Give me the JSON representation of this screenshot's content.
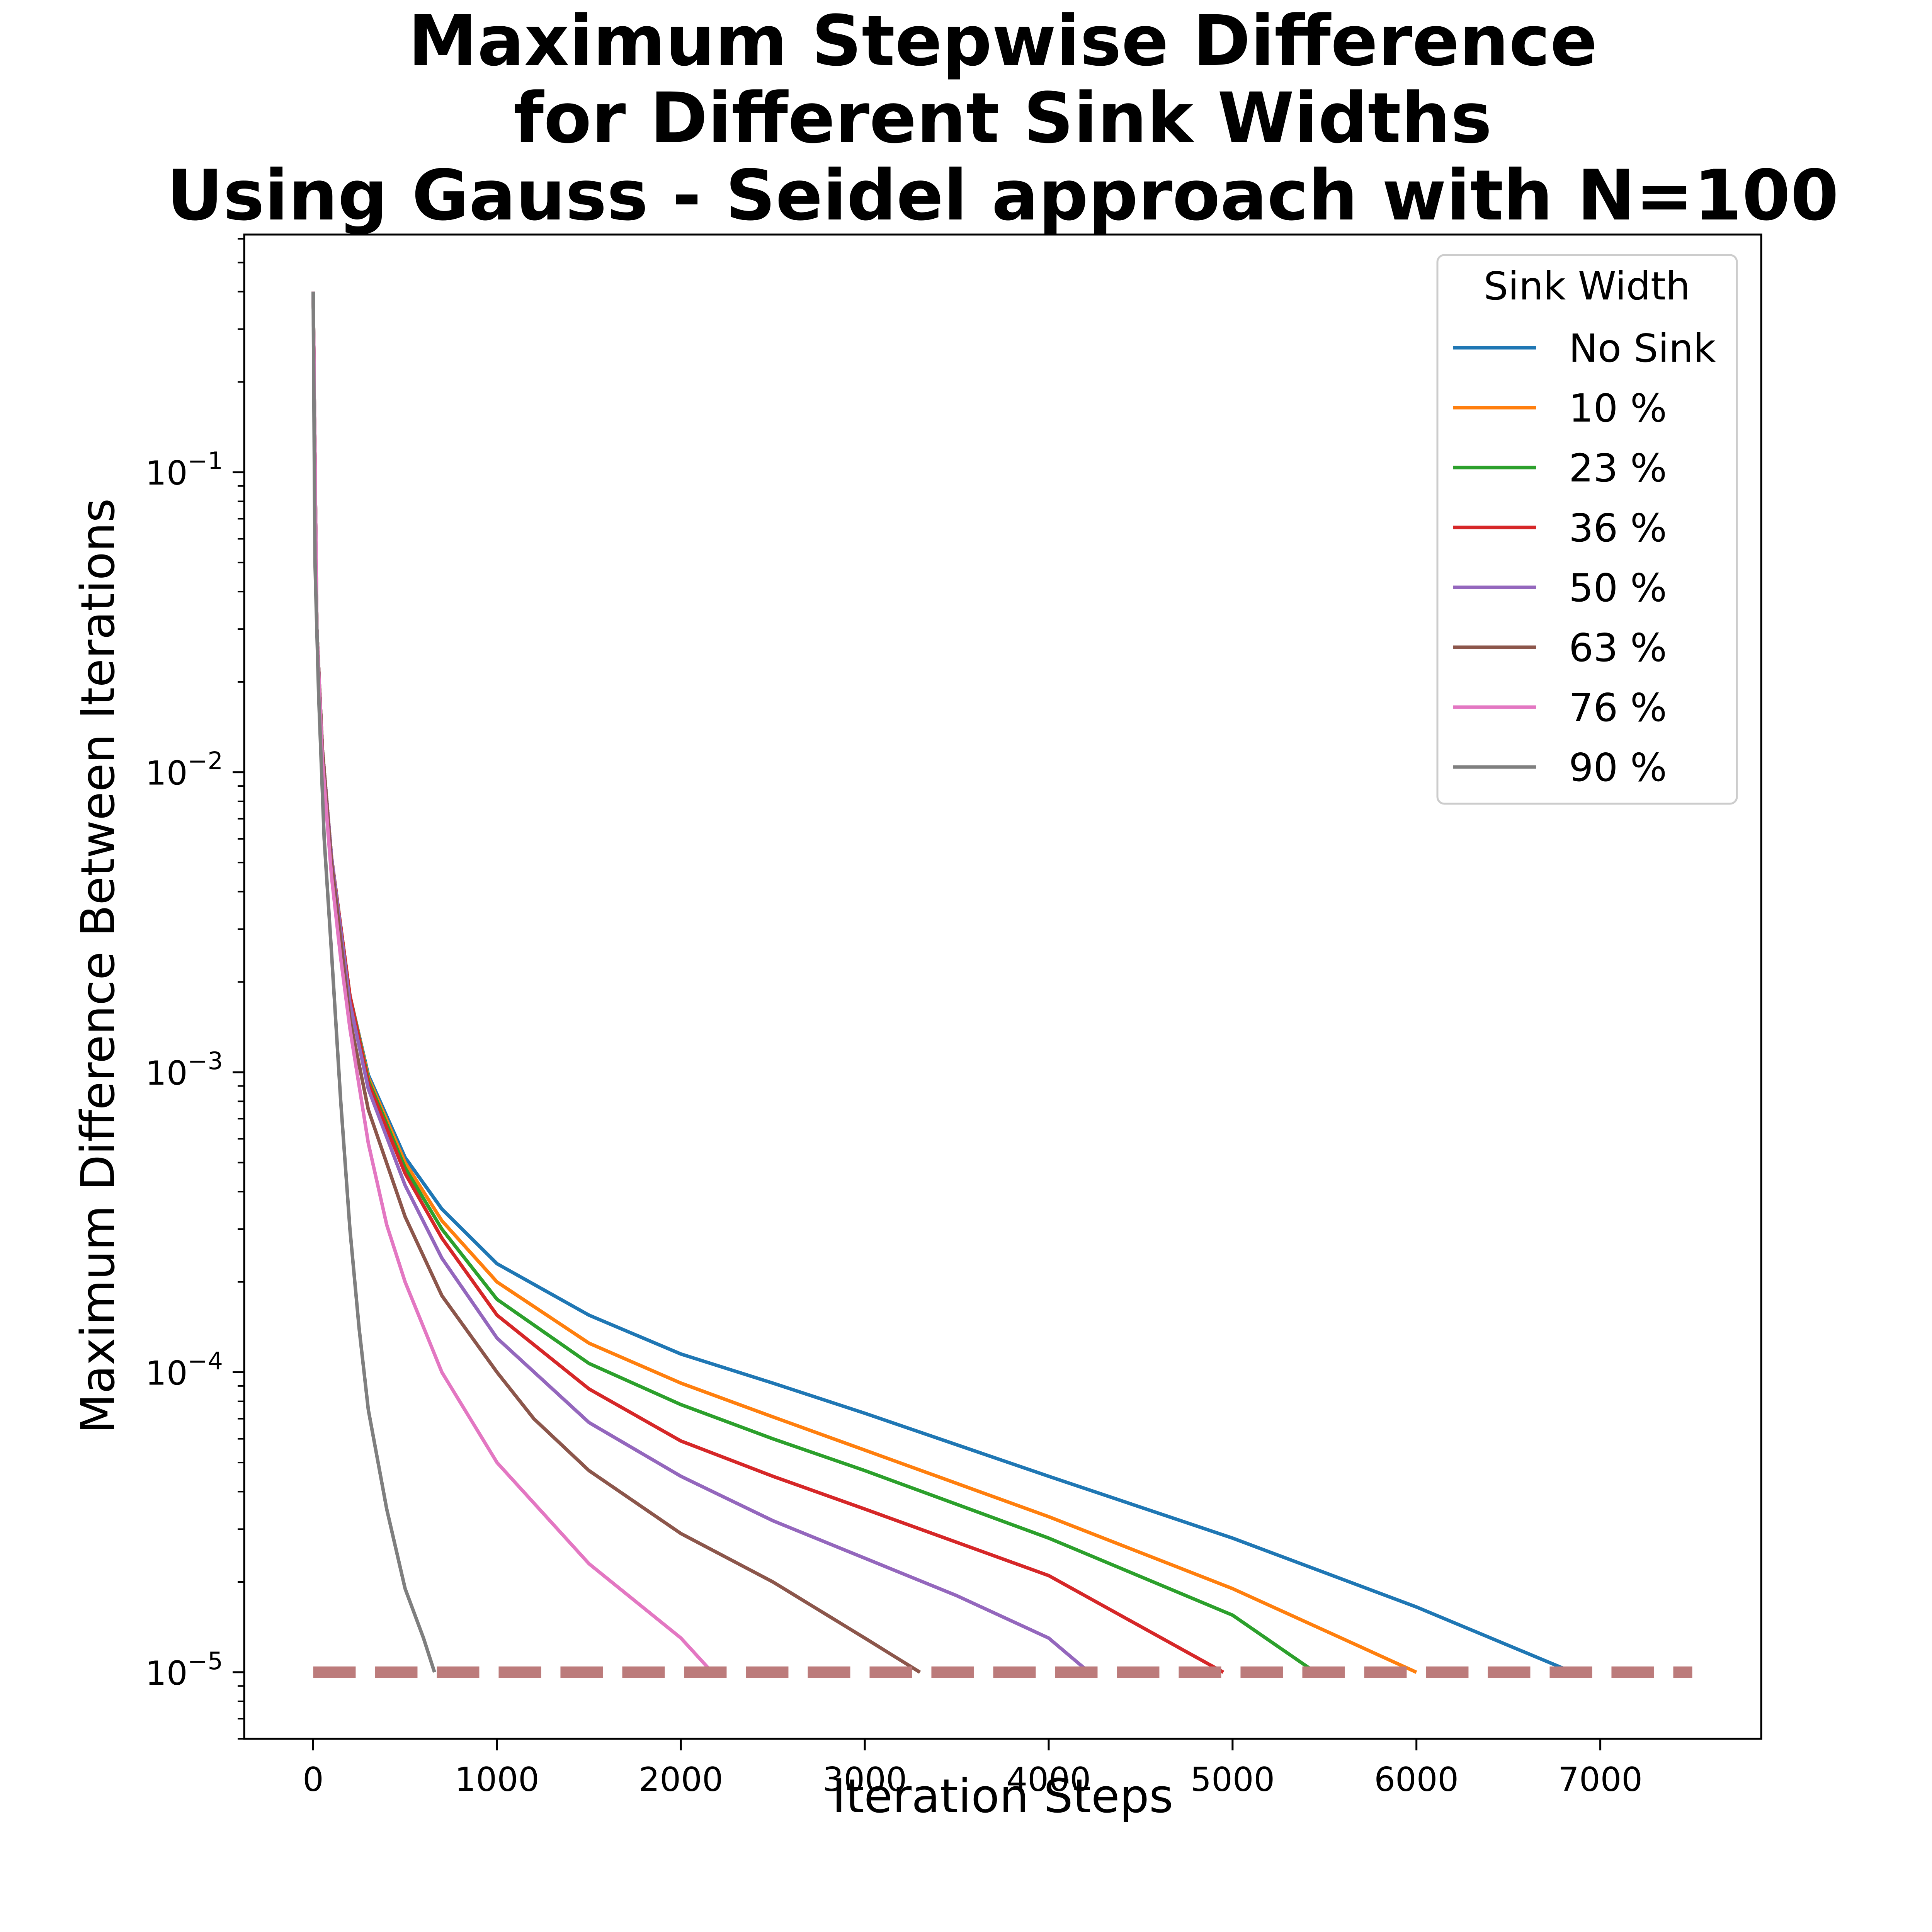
{
  "chart_data": {
    "type": "line",
    "title_lines": [
      "Maximum Stepwise Difference",
      "for Different Sink Widths",
      "Using Gauss - Seidel approach with N=100"
    ],
    "xlabel": "Iteration Steps",
    "ylabel": "Maximum Difference Between Iterations",
    "xlim": [
      -375,
      7875
    ],
    "ylim": [
      6e-06,
      0.62
    ],
    "yscale": "log",
    "x_ticks": [
      0,
      1000,
      2000,
      3000,
      4000,
      5000,
      6000,
      7000
    ],
    "x_tick_labels": [
      "0",
      "1000",
      "2000",
      "3000",
      "4000",
      "5000",
      "6000",
      "7000"
    ],
    "y_ticks": [
      1e-05,
      0.0001,
      0.001,
      0.01,
      0.1
    ],
    "y_tick_labels": [
      {
        "base": "10",
        "exp": "−5"
      },
      {
        "base": "10",
        "exp": "−4"
      },
      {
        "base": "10",
        "exp": "−3"
      },
      {
        "base": "10",
        "exp": "−2"
      },
      {
        "base": "10",
        "exp": "−1"
      }
    ],
    "grid": false,
    "legend": {
      "title": "Sink Width",
      "placement": "top-right"
    },
    "threshold": {
      "y": 1e-05,
      "x_range": [
        0,
        7500
      ],
      "color": "#bc7b7b",
      "style": "dashed"
    },
    "series": [
      {
        "name": "No Sink",
        "color": "#1f77b4",
        "points": [
          [
            0,
            0.4
          ],
          [
            20,
            0.03
          ],
          [
            50,
            0.012
          ],
          [
            100,
            0.0052
          ],
          [
            200,
            0.0018
          ],
          [
            300,
            0.00098
          ],
          [
            500,
            0.00052
          ],
          [
            700,
            0.00035
          ],
          [
            1000,
            0.00023
          ],
          [
            1500,
            0.000155
          ],
          [
            2000,
            0.000115
          ],
          [
            2500,
            9.2e-05
          ],
          [
            3000,
            7.3e-05
          ],
          [
            4000,
            4.5e-05
          ],
          [
            5000,
            2.8e-05
          ],
          [
            6000,
            1.65e-05
          ],
          [
            6850,
            1e-05
          ]
        ]
      },
      {
        "name": "10 %",
        "color": "#ff7f0e",
        "points": [
          [
            0,
            0.4
          ],
          [
            20,
            0.03
          ],
          [
            50,
            0.012
          ],
          [
            100,
            0.0052
          ],
          [
            200,
            0.0018
          ],
          [
            300,
            0.00096
          ],
          [
            500,
            0.0005
          ],
          [
            700,
            0.00032
          ],
          [
            1000,
            0.0002
          ],
          [
            1500,
            0.000125
          ],
          [
            2000,
            9.2e-05
          ],
          [
            2500,
            7.1e-05
          ],
          [
            3000,
            5.5e-05
          ],
          [
            4000,
            3.3e-05
          ],
          [
            5000,
            1.9e-05
          ],
          [
            6000,
            1e-05
          ]
        ]
      },
      {
        "name": "23 %",
        "color": "#2ca02c",
        "points": [
          [
            0,
            0.4
          ],
          [
            20,
            0.03
          ],
          [
            50,
            0.012
          ],
          [
            100,
            0.0052
          ],
          [
            200,
            0.0018
          ],
          [
            300,
            0.00094
          ],
          [
            500,
            0.00048
          ],
          [
            700,
            0.0003
          ],
          [
            1000,
            0.000175
          ],
          [
            1500,
            0.000107
          ],
          [
            2000,
            7.8e-05
          ],
          [
            2500,
            6e-05
          ],
          [
            3000,
            4.7e-05
          ],
          [
            4000,
            2.8e-05
          ],
          [
            5000,
            1.55e-05
          ],
          [
            5450,
            1e-05
          ]
        ]
      },
      {
        "name": "36 %",
        "color": "#d62728",
        "points": [
          [
            0,
            0.4
          ],
          [
            20,
            0.03
          ],
          [
            50,
            0.012
          ],
          [
            100,
            0.0052
          ],
          [
            200,
            0.0018
          ],
          [
            300,
            0.00092
          ],
          [
            500,
            0.00046
          ],
          [
            700,
            0.00028
          ],
          [
            1000,
            0.000155
          ],
          [
            1500,
            8.8e-05
          ],
          [
            2000,
            5.9e-05
          ],
          [
            2500,
            4.5e-05
          ],
          [
            3000,
            3.5e-05
          ],
          [
            4000,
            2.1e-05
          ],
          [
            4950,
            1e-05
          ]
        ]
      },
      {
        "name": "50 %",
        "color": "#9467bd",
        "points": [
          [
            0,
            0.4
          ],
          [
            20,
            0.03
          ],
          [
            50,
            0.012
          ],
          [
            100,
            0.0052
          ],
          [
            200,
            0.0017
          ],
          [
            300,
            0.00088
          ],
          [
            500,
            0.00042
          ],
          [
            700,
            0.00024
          ],
          [
            1000,
            0.00013
          ],
          [
            1500,
            6.8e-05
          ],
          [
            2000,
            4.5e-05
          ],
          [
            2500,
            3.2e-05
          ],
          [
            3000,
            2.4e-05
          ],
          [
            3500,
            1.8e-05
          ],
          [
            4000,
            1.3e-05
          ],
          [
            4220,
            1e-05
          ]
        ]
      },
      {
        "name": "63 %",
        "color": "#8c564b",
        "points": [
          [
            0,
            0.4
          ],
          [
            20,
            0.03
          ],
          [
            50,
            0.012
          ],
          [
            100,
            0.005
          ],
          [
            200,
            0.0015
          ],
          [
            300,
            0.00075
          ],
          [
            500,
            0.00033
          ],
          [
            700,
            0.00018
          ],
          [
            1000,
            0.0001
          ],
          [
            1200,
            7e-05
          ],
          [
            1500,
            4.7e-05
          ],
          [
            2000,
            2.9e-05
          ],
          [
            2500,
            2e-05
          ],
          [
            3000,
            1.3e-05
          ],
          [
            3300,
            1e-05
          ]
        ]
      },
      {
        "name": "76 %",
        "color": "#e377c2",
        "points": [
          [
            0,
            0.4
          ],
          [
            20,
            0.03
          ],
          [
            50,
            0.011
          ],
          [
            100,
            0.0045
          ],
          [
            150,
            0.0024
          ],
          [
            200,
            0.0014
          ],
          [
            300,
            0.00058
          ],
          [
            400,
            0.00031
          ],
          [
            500,
            0.0002
          ],
          [
            700,
            0.0001
          ],
          [
            1000,
            5e-05
          ],
          [
            1500,
            2.3e-05
          ],
          [
            2000,
            1.3e-05
          ],
          [
            2170,
            1e-05
          ]
        ]
      },
      {
        "name": "90 %",
        "color": "#7f7f7f",
        "points": [
          [
            0,
            0.4
          ],
          [
            10,
            0.05
          ],
          [
            30,
            0.018
          ],
          [
            60,
            0.006
          ],
          [
            100,
            0.0025
          ],
          [
            150,
            0.0008
          ],
          [
            200,
            0.0003
          ],
          [
            250,
            0.00014
          ],
          [
            300,
            7.5e-05
          ],
          [
            400,
            3.5e-05
          ],
          [
            500,
            1.9e-05
          ],
          [
            600,
            1.3e-05
          ],
          [
            660,
            1e-05
          ]
        ]
      }
    ]
  }
}
